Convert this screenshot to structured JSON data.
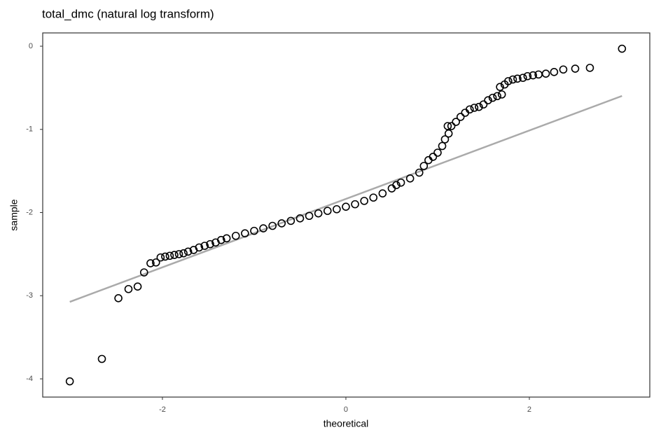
{
  "chart_data": {
    "type": "scatter",
    "title": "total_dmc (natural log transform)",
    "x_label": "theoretical",
    "y_label": "sample",
    "x": [
      -3.01,
      -2.66,
      -2.48,
      -2.37,
      -2.27,
      -2.2,
      -2.13,
      -2.07,
      -2.02,
      -1.97,
      -1.92,
      -1.87,
      -1.82,
      -1.77,
      -1.72,
      -1.66,
      -1.6,
      -1.54,
      -1.48,
      -1.42,
      -1.36,
      -1.3,
      -1.2,
      -1.1,
      -1.0,
      -0.9,
      -0.8,
      -0.7,
      -0.6,
      -0.5,
      -0.4,
      -0.3,
      -0.2,
      -0.1,
      0,
      0.1,
      0.2,
      0.3,
      0.4,
      0.5,
      0.55,
      0.6,
      0.7,
      0.8,
      0.85,
      0.9,
      0.95,
      1.0,
      1.05,
      1.08,
      1.12,
      1.11,
      1.15,
      1.2,
      1.25,
      1.3,
      1.35,
      1.4,
      1.45,
      1.5,
      1.55,
      1.6,
      1.65,
      1.7,
      1.68,
      1.73,
      1.77,
      1.82,
      1.87,
      1.93,
      1.98,
      2.04,
      2.1,
      2.18,
      2.27,
      2.37,
      2.5,
      2.66,
      3.01
    ],
    "values": [
      -4.03,
      -3.76,
      -3.03,
      -2.92,
      -2.89,
      -2.72,
      -2.61,
      -2.6,
      -2.54,
      -2.53,
      -2.52,
      -2.51,
      -2.5,
      -2.49,
      -2.47,
      -2.45,
      -2.42,
      -2.4,
      -2.38,
      -2.36,
      -2.33,
      -2.31,
      -2.28,
      -2.25,
      -2.22,
      -2.19,
      -2.16,
      -2.13,
      -2.1,
      -2.07,
      -2.04,
      -2.01,
      -1.98,
      -1.96,
      -1.93,
      -1.9,
      -1.86,
      -1.82,
      -1.77,
      -1.71,
      -1.67,
      -1.64,
      -1.59,
      -1.52,
      -1.44,
      -1.37,
      -1.33,
      -1.28,
      -1.2,
      -1.12,
      -1.05,
      -0.96,
      -0.96,
      -0.91,
      -0.85,
      -0.8,
      -0.76,
      -0.74,
      -0.73,
      -0.7,
      -0.65,
      -0.62,
      -0.6,
      -0.58,
      -0.49,
      -0.46,
      -0.42,
      -0.4,
      -0.39,
      -0.38,
      -0.36,
      -0.35,
      -0.34,
      -0.33,
      -0.31,
      -0.28,
      -0.27,
      -0.26,
      -0.03
    ],
    "color": "#000000",
    "reference_line": {
      "x": [
        -3.01,
        3.01
      ],
      "y": [
        -3.074,
        -0.598
      ],
      "color": "#aaaaaa"
    },
    "xlim": [
      -3.305,
      3.313
    ],
    "ylim": [
      -4.219,
      0.16
    ],
    "xticks": [
      -2,
      0,
      2
    ],
    "yticks": [
      -4,
      -3,
      -2,
      -1,
      0
    ],
    "grid": false
  }
}
